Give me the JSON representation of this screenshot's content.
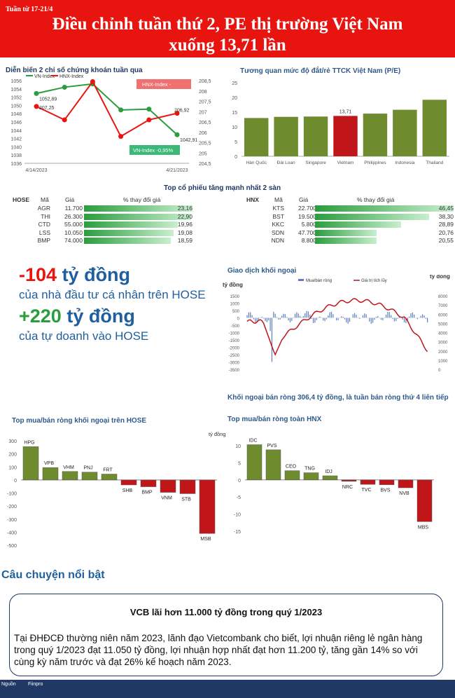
{
  "header": {
    "week": "Tuần từ 17-21/4",
    "title_line1": "Điều chỉnh tuần thứ 2, PE thị trường Việt Nam",
    "title_line2": "xuống 13,71 lần"
  },
  "colors": {
    "red": "#e8140f",
    "navy": "#1f3864",
    "green": "#2a9d3c",
    "darkred": "#c0161a",
    "olive": "#6e8b2e"
  },
  "sections": {
    "index_chart": "Diễn biến 2 chỉ số chứng khoán tuần qua",
    "pe_chart": "Tương quan mức độ đắt/rẻ TTCK Việt Nam (P/E)",
    "top_gainers": "Top cổ phiếu tăng mạnh nhất 2 sàn",
    "foreign": "Giao dịch khối ngoại",
    "foreign_note": "Khối ngoại bán ròng 306,4 tỷ đồng, là tuần bán ròng thứ 4 liên tiếp",
    "hose_net": "Top mua/bán ròng khối ngoại trên HOSE",
    "hnx_net": "Top mua/bán ròng toàn HNX",
    "story": "Câu chuyện nổi bật"
  },
  "chart_data": [
    {
      "type": "line",
      "x": [
        "4/14/2023",
        "",
        "",
        "",
        "",
        "4/21/2023"
      ],
      "series": [
        {
          "name": "VN-Index",
          "values": [
            1052.89,
            1054.4,
            1055.2,
            1048.9,
            1049.1,
            1042.91
          ],
          "axis": "left"
        },
        {
          "name": "HNX-Index",
          "values": [
            207.25,
            206.6,
            208.45,
            205.8,
            206.6,
            206.92
          ],
          "axis": "right"
        }
      ],
      "ylim": [
        1036,
        1056
      ],
      "y2lim": [
        204.5,
        208.5
      ],
      "annotations": {
        "vn_start": "1052,89",
        "hnx_start": "207,25",
        "vn_end": "1042,91",
        "hnx_end": "206,92",
        "hnx_callout": "HNX-Index -",
        "vn_callout": "VN-Index -0,95%"
      }
    },
    {
      "type": "bar",
      "categories": [
        "Hàn Quốc",
        "Đài Loan",
        "Singapore",
        "Vietnam",
        "Philippines",
        "Indonesia",
        "Thailand"
      ],
      "values": [
        13.0,
        13.4,
        13.5,
        13.71,
        14.5,
        15.8,
        19.2
      ],
      "ylim": [
        0,
        25
      ],
      "highlight": "Vietnam",
      "label": "13,71"
    },
    {
      "type": "table",
      "exchange": "HOSE",
      "headers": [
        "Mã",
        "Giá",
        "% thay đổi giá"
      ],
      "rows": [
        [
          "AGR",
          "11.700",
          "23,16",
          23.16
        ],
        [
          "THI",
          "26.300",
          "22,90",
          22.9
        ],
        [
          "CTD",
          "55.000",
          "19,96",
          19.96
        ],
        [
          "LSS",
          "10.050",
          "19,08",
          19.08
        ],
        [
          "BMP",
          "74.000",
          "18,59",
          18.59
        ]
      ]
    },
    {
      "type": "table",
      "exchange": "HNX",
      "headers": [
        "Mã",
        "Giá",
        "% thay đổi giá"
      ],
      "rows": [
        [
          "KTS",
          "22.700",
          "46,45",
          46.45
        ],
        [
          "BST",
          "19.500",
          "38,30",
          38.3
        ],
        [
          "KKC",
          "5.800",
          "28,89",
          28.89
        ],
        [
          "SDN",
          "47.700",
          "20,76",
          20.76
        ],
        [
          "NDN",
          "8.800",
          "20,55",
          20.55
        ]
      ]
    },
    {
      "type": "bar",
      "categories": [
        "HPG",
        "VPB",
        "VHM",
        "PNJ",
        "FRT",
        "SHB",
        "BMP",
        "VNM",
        "STB",
        "MSB"
      ],
      "values": [
        255,
        95,
        65,
        60,
        45,
        -38,
        -52,
        -95,
        -105,
        -410
      ],
      "ylim": [
        -500,
        300
      ]
    },
    {
      "type": "bar",
      "categories": [
        "IDC",
        "PVS",
        "CEO",
        "TNG",
        "IDJ",
        "NRC",
        "TVC",
        "BVS",
        "NVB",
        "MBS"
      ],
      "values": [
        10.3,
        8.8,
        2.7,
        2.1,
        1.2,
        -0.4,
        -1.3,
        -1.4,
        -2.3,
        -12.2
      ],
      "ylim": [
        -15,
        10
      ],
      "ylabel": "tỷ đồng"
    },
    {
      "type": "line",
      "legend": [
        "Mua/bán ròng",
        "Giá trị tích lũy"
      ],
      "ylabel_left": "tỷ đồng",
      "ylabel_right": "tỷ đồng",
      "ylim": [
        -3500,
        1500
      ],
      "y2lim": [
        0,
        8000
      ]
    }
  ],
  "headline": {
    "value1": "-104 tỷ đồng",
    "text1": "của nhà đầu tư cá nhân trên HOSE",
    "value2": "+220 tỷ đồng",
    "text2": "của tự doanh vào HOSE"
  },
  "story": {
    "title": "VCB lãi hơn 11.000 tỷ đồng trong quý 1/2023",
    "body": "Tại ĐHĐCĐ thường niên năm 2023, lãnh đạo Vietcombank cho biết, lợi nhuận riêng lẻ ngân hàng trong quý 1/2023 đạt 11.050 tỷ đồng, lợi nhuận hợp nhất đạt hơn 11.200 tỷ, tăng gần 14% so với cùng kỳ năm trước và đạt 26% kế hoạch năm 2023."
  },
  "footer": {
    "label": "Nguồn",
    "source": "Fiinpro"
  }
}
